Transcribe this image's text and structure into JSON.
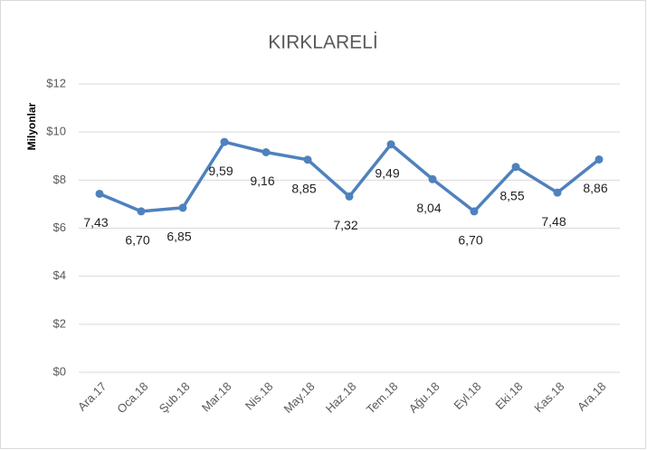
{
  "chart_data": {
    "type": "line",
    "title": "KIRKLARELİ",
    "y_label": "Milyonlar",
    "categories": [
      "Ara.17",
      "Oca.18",
      "Şub.18",
      "Mar.18",
      "Nis.18",
      "May.18",
      "Haz.18",
      "Tem.18",
      "Ağu.18",
      "Eyl.18",
      "Eki.18",
      "Kas.18",
      "Ara.18"
    ],
    "series": [
      {
        "name": "KIRKLARELİ",
        "color": "#4f81bd",
        "values": [
          7.43,
          6.7,
          6.85,
          9.59,
          9.16,
          8.85,
          7.32,
          9.49,
          8.04,
          6.7,
          8.55,
          7.48,
          8.86
        ],
        "value_labels": [
          "7,43",
          "6,70",
          "6,85",
          "9,59",
          "9,16",
          "8,85",
          "7,32",
          "9,49",
          "8,04",
          "6,70",
          "8,55",
          "7,48",
          "8,86"
        ]
      }
    ],
    "ylim": [
      0,
      12
    ],
    "yticks": [
      {
        "value": 0,
        "label": "$0"
      },
      {
        "value": 2,
        "label": "$2"
      },
      {
        "value": 4,
        "label": "$4"
      },
      {
        "value": 6,
        "label": "$6"
      },
      {
        "value": 8,
        "label": "$8"
      },
      {
        "value": 10,
        "label": "$10"
      },
      {
        "value": 12,
        "label": "$12"
      }
    ],
    "grid": true
  }
}
